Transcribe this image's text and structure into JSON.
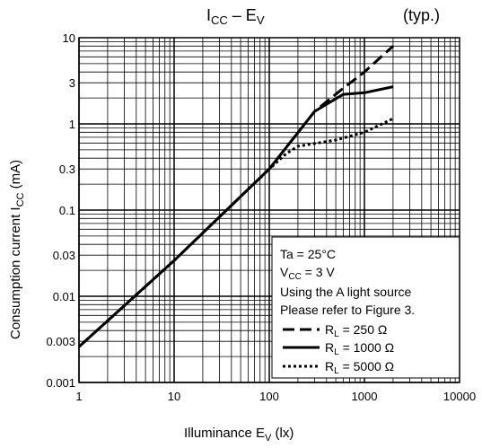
{
  "chart_data": {
    "type": "line",
    "title": {
      "main": "I",
      "main_sub": "CC",
      "sep": " – E",
      "sep_sub": "V"
    },
    "note": "(typ.)",
    "xlabel": {
      "a": "Illuminance   E",
      "a_sub": "V",
      "b": "   (lx)"
    },
    "ylabel": {
      "a": "Consumption current   I",
      "a_sub": "CC",
      "b": "   (mA)"
    },
    "x_scale": "log",
    "y_scale": "log",
    "xlim": [
      1,
      10000
    ],
    "ylim": [
      0.001,
      10
    ],
    "x_ticks": [
      {
        "v": 1,
        "label": "1"
      },
      {
        "v": 10,
        "label": "10"
      },
      {
        "v": 100,
        "label": "100"
      },
      {
        "v": 1000,
        "label": "1000"
      },
      {
        "v": 10000,
        "label": "10000"
      }
    ],
    "y_ticks": [
      {
        "v": 0.001,
        "label": "0.001"
      },
      {
        "v": 0.003,
        "label": "0.003"
      },
      {
        "v": 0.01,
        "label": "0.01"
      },
      {
        "v": 0.03,
        "label": "0.03"
      },
      {
        "v": 0.1,
        "label": "0.1"
      },
      {
        "v": 0.3,
        "label": "0.3"
      },
      {
        "v": 1,
        "label": "1"
      },
      {
        "v": 3,
        "label": "3"
      },
      {
        "v": 10,
        "label": "10"
      }
    ],
    "grid": true,
    "legend": {
      "placement": "bottom-right",
      "conditions": [
        {
          "text": "Ta = 25°C"
        },
        {
          "main": "V",
          "sub": "CC",
          "rest": " = 3 V"
        },
        {
          "text": "Using the A light source"
        },
        {
          "text": "Please refer to Figure 3."
        }
      ]
    },
    "series": [
      {
        "name": "250 Ω",
        "prefix": "R",
        "prefix_sub": "L",
        "label_rest": " = 250 Ω",
        "style": "dashed",
        "points": [
          [
            1,
            0.0026
          ],
          [
            10,
            0.026
          ],
          [
            100,
            0.3
          ],
          [
            300,
            1.4
          ],
          [
            600,
            2.6
          ],
          [
            1000,
            4.0
          ],
          [
            2000,
            8.0
          ]
        ]
      },
      {
        "name": "1000 Ω",
        "prefix": "R",
        "prefix_sub": "L",
        "label_rest": " = 1000 Ω",
        "style": "solid",
        "points": [
          [
            1,
            0.0026
          ],
          [
            10,
            0.026
          ],
          [
            100,
            0.3
          ],
          [
            300,
            1.4
          ],
          [
            600,
            2.2
          ],
          [
            1000,
            2.3
          ],
          [
            2000,
            2.7
          ]
        ]
      },
      {
        "name": "5000 Ω",
        "prefix": "R",
        "prefix_sub": "L",
        "label_rest": " = 5000 Ω",
        "style": "dotted",
        "points": [
          [
            1,
            0.0026
          ],
          [
            10,
            0.026
          ],
          [
            100,
            0.3
          ],
          [
            150,
            0.45
          ],
          [
            200,
            0.55
          ],
          [
            500,
            0.65
          ],
          [
            1000,
            0.8
          ],
          [
            2000,
            1.15
          ]
        ]
      }
    ]
  }
}
